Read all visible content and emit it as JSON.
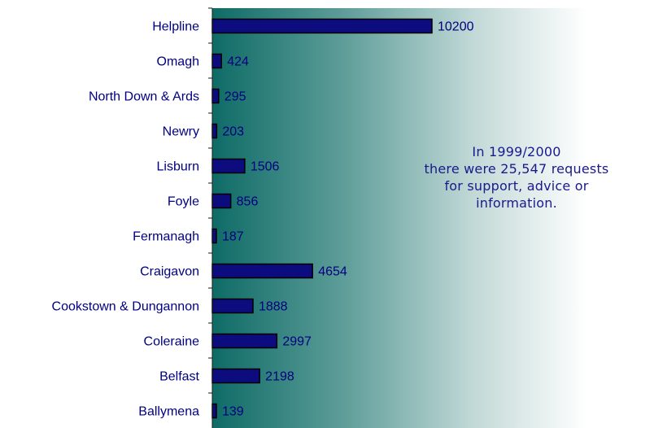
{
  "chart_data": {
    "type": "bar",
    "orientation": "horizontal",
    "categories": [
      "Helpline",
      "Omagh",
      "North Down & Ards",
      "Newry",
      "Lisburn",
      "Foyle",
      "Fermanagh",
      "Craigavon",
      "Cookstown & Dungannon",
      "Coleraine",
      "Belfast",
      "Ballymena"
    ],
    "values": [
      10200,
      424,
      295,
      203,
      1506,
      856,
      187,
      4654,
      1888,
      2997,
      2198,
      139
    ],
    "data_labels": [
      "10200",
      "424",
      "295",
      "203",
      "1506",
      "856",
      "187",
      "4654",
      "1888",
      "2997",
      "2198",
      "139"
    ],
    "xlim": [
      0,
      10200
    ],
    "grid": false,
    "legend": "none",
    "bar_color": "#0c0c7e",
    "label_color": "#000080",
    "background_gradient": [
      "#0e6b66",
      "#ffffff"
    ]
  },
  "annotation": {
    "lines": [
      "In 1999/2000",
      "there were 25,547 requests",
      "for support, advice or",
      "information."
    ],
    "color": "#1a1a8c"
  }
}
